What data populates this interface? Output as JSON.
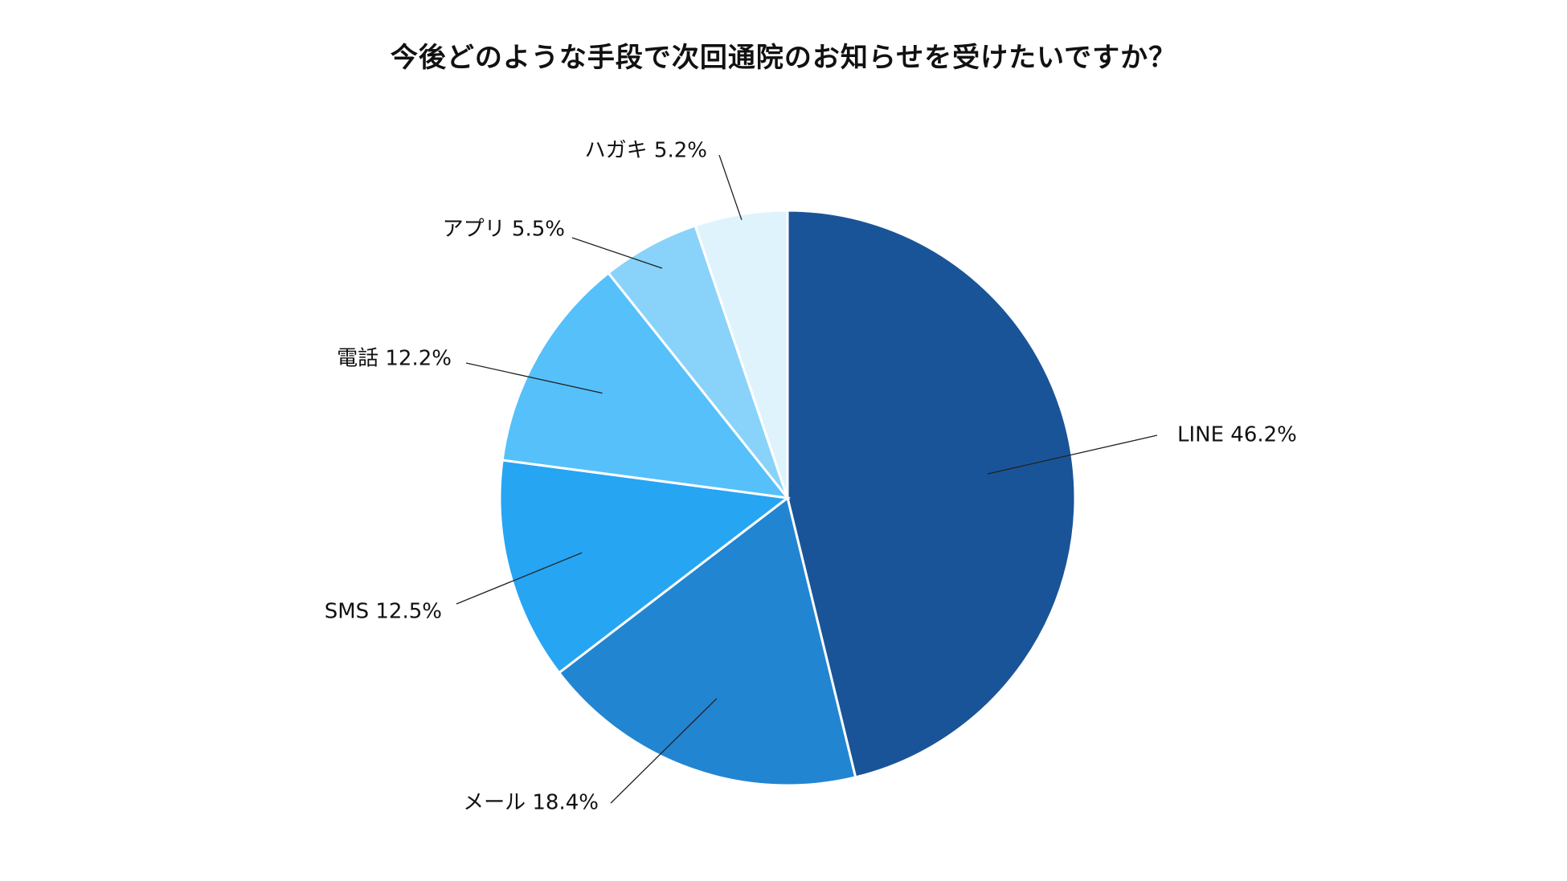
{
  "chart_data": {
    "type": "pie",
    "title": "今後どのような手段で次回通院のお知らせを受けたいですか？",
    "unit": "%",
    "slices": [
      {
        "label": "LINE",
        "value": 46.2,
        "color": "#1A5498"
      },
      {
        "label": "メール",
        "value": 18.4,
        "color": "#2285D2"
      },
      {
        "label": "SMS",
        "value": 12.5,
        "color": "#26A5F3"
      },
      {
        "label": "電話",
        "value": 12.2,
        "color": "#56C0FA"
      },
      {
        "label": "アプリ",
        "value": 5.5,
        "color": "#89D3FA"
      },
      {
        "label": "ハガキ",
        "value": 5.2,
        "color": "#DFF3FD"
      }
    ],
    "start_angle_deg": 0,
    "direction": "clockwise"
  }
}
